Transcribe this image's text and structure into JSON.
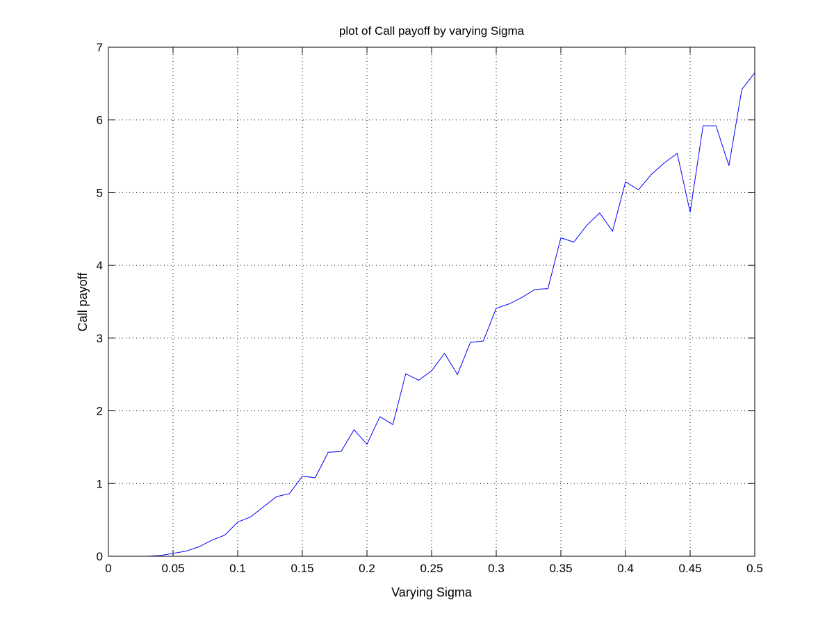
{
  "chart_data": {
    "type": "line",
    "title": "plot of Call payoff by varying Sigma",
    "xlabel": "Varying Sigma",
    "ylabel": "Call payoff",
    "xlim": [
      0,
      0.5
    ],
    "ylim": [
      0,
      7
    ],
    "grid": true,
    "xticks": [
      0,
      0.05,
      0.1,
      0.15,
      0.2,
      0.25,
      0.3,
      0.35,
      0.4,
      0.45,
      0.5
    ],
    "xtick_labels": [
      "0",
      "0.05",
      "0.1",
      "0.15",
      "0.2",
      "0.25",
      "0.3",
      "0.35",
      "0.4",
      "0.45",
      "0.5"
    ],
    "yticks": [
      0,
      1,
      2,
      3,
      4,
      5,
      6,
      7
    ],
    "ytick_labels": [
      "0",
      "1",
      "2",
      "3",
      "4",
      "5",
      "6",
      "7"
    ],
    "series": [
      {
        "color": "#0000ff",
        "x": [
          0.01,
          0.02,
          0.03,
          0.04,
          0.05,
          0.06,
          0.07,
          0.08,
          0.09,
          0.1,
          0.11,
          0.12,
          0.13,
          0.14,
          0.15,
          0.16,
          0.17,
          0.18,
          0.19,
          0.2,
          0.21,
          0.22,
          0.23,
          0.24,
          0.25,
          0.26,
          0.27,
          0.28,
          0.29,
          0.3,
          0.31,
          0.32,
          0.33,
          0.34,
          0.35,
          0.36,
          0.37,
          0.38,
          0.39,
          0.4,
          0.41,
          0.42,
          0.43,
          0.44,
          0.45,
          0.46,
          0.47,
          0.48,
          0.49,
          0.5
        ],
        "y": [
          0.0,
          0.0,
          0.0,
          0.01,
          0.04,
          0.07,
          0.13,
          0.22,
          0.29,
          0.47,
          0.54,
          0.68,
          0.82,
          0.86,
          1.1,
          1.08,
          1.43,
          1.44,
          1.74,
          1.54,
          1.92,
          1.81,
          2.51,
          2.42,
          2.55,
          2.79,
          2.5,
          2.94,
          2.96,
          3.41,
          3.47,
          3.56,
          3.67,
          3.68,
          4.38,
          4.32,
          4.55,
          4.72,
          4.47,
          5.15,
          5.04,
          5.25,
          5.41,
          5.54,
          4.73,
          5.92,
          5.92,
          5.37,
          6.42,
          6.65
        ]
      }
    ]
  }
}
